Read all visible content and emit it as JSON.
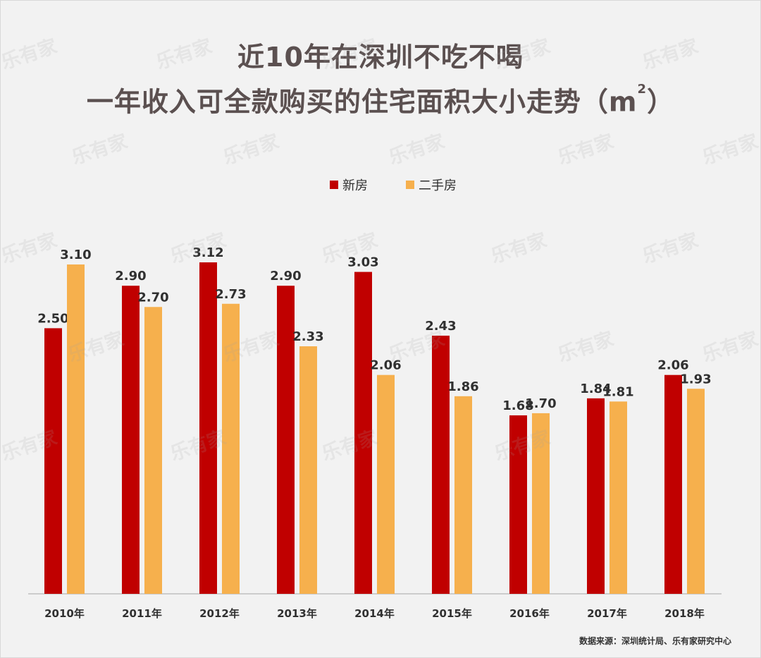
{
  "page": {
    "title_line1": "近10年在深圳不吃不喝",
    "title_line2": "一年收入可全款购买的住宅面积大小走势（m",
    "title_superscript": "2",
    "title_suffix": "）",
    "source": "数据来源：深圳统计局、乐有家研究中心"
  },
  "legend": {
    "series_1": "新房",
    "series_2": "二手房"
  },
  "watermarks": [
    "乐有家",
    "乐有家",
    "乐有家",
    "乐有家",
    "乐有家",
    "乐有家",
    "乐有家",
    "乐有家",
    "乐有家",
    "乐有家",
    "乐有家",
    "乐有家",
    "乐有家",
    "乐有家",
    "乐有家",
    "乐有家",
    "乐有家",
    "乐有家",
    "乐有家",
    "乐有家",
    "乐有家",
    "乐有家",
    "乐有家",
    "乐有家"
  ],
  "colors": {
    "new_home": "#c00000",
    "second_hand": "#f6b04d",
    "text": "#303030",
    "title": "#5b5050",
    "axis": "#bfbfbf"
  },
  "chart_data": {
    "type": "bar",
    "categories": [
      "2010年",
      "2011年",
      "2012年",
      "2013年",
      "2014年",
      "2015年",
      "2016年",
      "2017年",
      "2018年"
    ],
    "series": [
      {
        "name": "新房",
        "values": [
          2.5,
          2.9,
          3.12,
          2.9,
          3.03,
          2.43,
          1.68,
          1.84,
          2.06
        ],
        "labels": [
          "2.50",
          "2.90",
          "3.12",
          "2.90",
          "3.03",
          "2.43",
          "1.68",
          "1.84",
          "2.06"
        ]
      },
      {
        "name": "二手房",
        "values": [
          3.1,
          2.7,
          2.73,
          2.33,
          2.06,
          1.86,
          1.7,
          1.81,
          1.93
        ],
        "labels": [
          "3.10",
          "2.70",
          "2.73",
          "2.33",
          "2.06",
          "1.86",
          "1.70",
          "1.81",
          "1.93"
        ]
      }
    ],
    "title": "近10年在深圳不吃不喝 一年收入可全款购买的住宅面积大小走势（m2）",
    "legend_position": "top-center",
    "grid": false
  }
}
